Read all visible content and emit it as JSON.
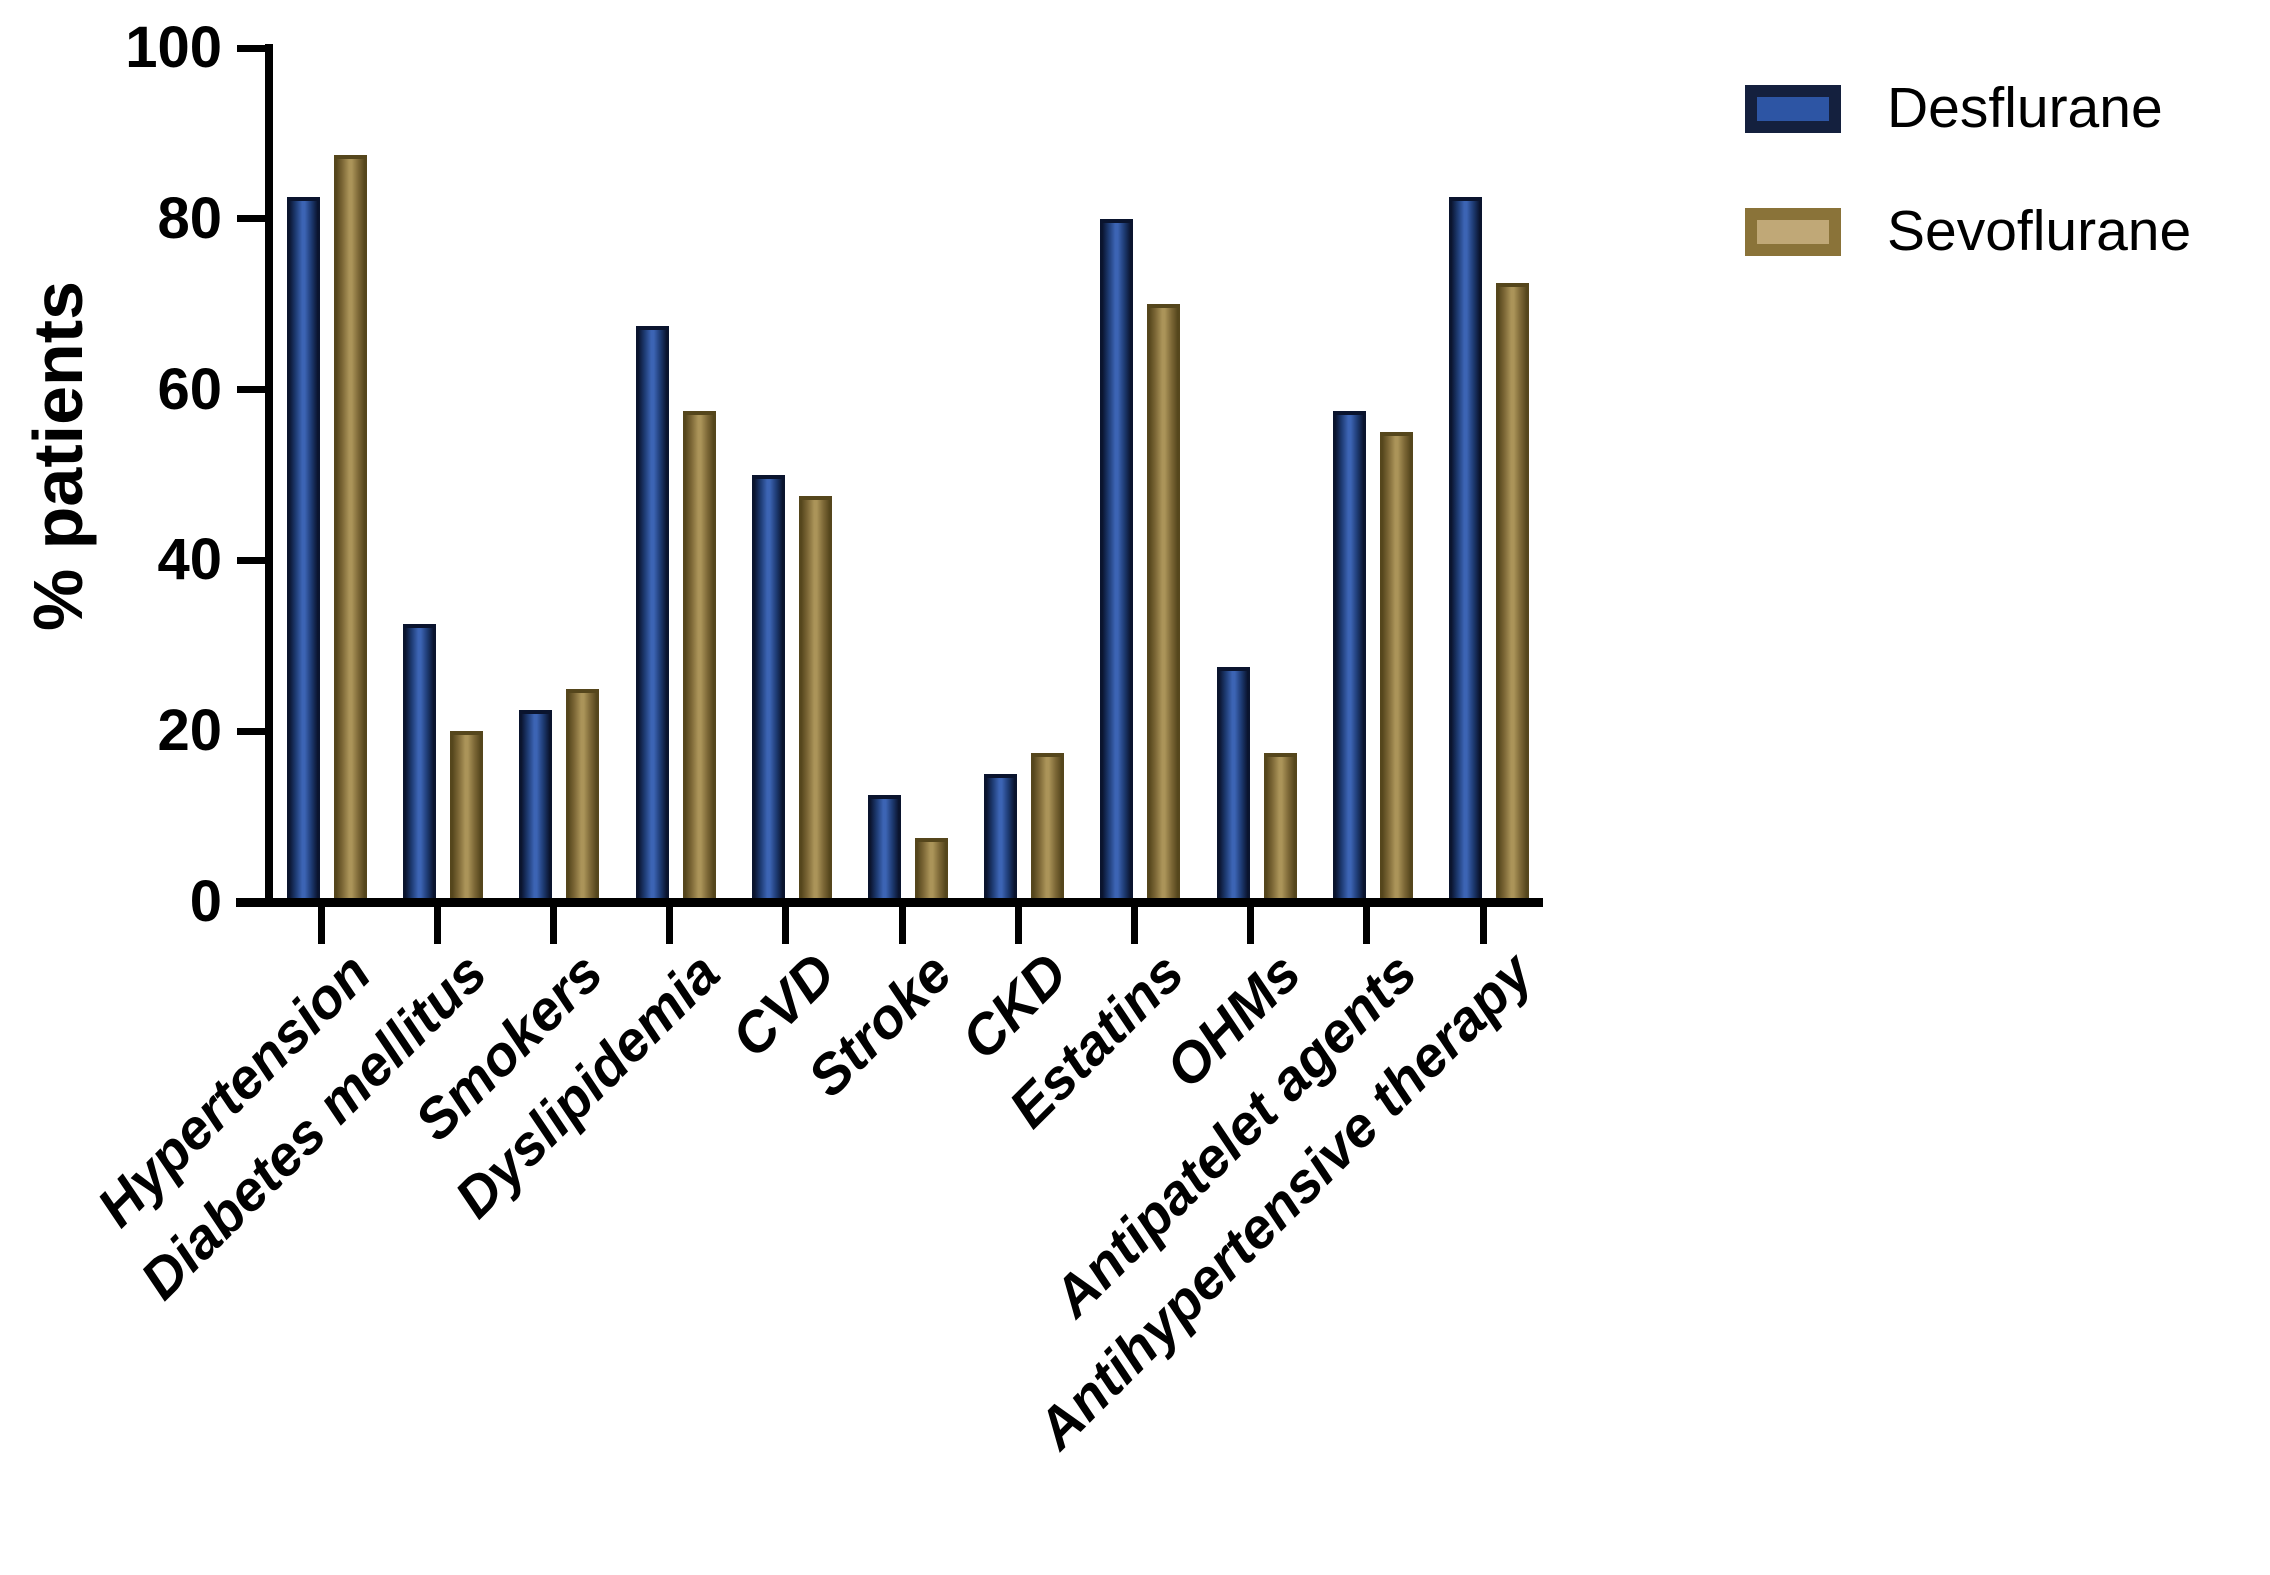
{
  "figure": {
    "background": "#ffffff",
    "axis_color": "#000000",
    "text_color": "#000000"
  },
  "chart_data": {
    "type": "bar",
    "title": "",
    "xlabel": "",
    "ylabel": "% patients",
    "ylim": [
      0,
      100
    ],
    "yticks": [
      0,
      20,
      40,
      60,
      80,
      100
    ],
    "grid": false,
    "legend_position": "top-right",
    "categories": [
      "Hypertension",
      "Diabetes mellitus",
      "Smokers",
      "Dyslipidemia",
      "CVD",
      "Stroke",
      "CKD",
      "Estatins",
      "OHMs",
      "Antipatelet agents",
      "Antihypertensive therapy"
    ],
    "series": [
      {
        "name": "Desflurane",
        "values": [
          82.5,
          32.5,
          22.5,
          67.5,
          50,
          12.5,
          15,
          80,
          27.5,
          57.5,
          82.5
        ],
        "bar_mid": "#1d3a72",
        "bar_highlight": "#3c64b4",
        "bar_edge": "#0a142e",
        "legend_fill": "#2d55a4",
        "legend_border": "#14203e"
      },
      {
        "name": "Sevoflurane",
        "values": [
          87.5,
          20,
          25,
          57.5,
          47.5,
          7.5,
          17.5,
          70,
          17.5,
          55,
          72.5
        ],
        "bar_mid": "#7d6837",
        "bar_highlight": "#ab9459",
        "bar_edge": "#55461c",
        "legend_fill": "#c0a877",
        "legend_border": "#8a7339"
      }
    ]
  }
}
